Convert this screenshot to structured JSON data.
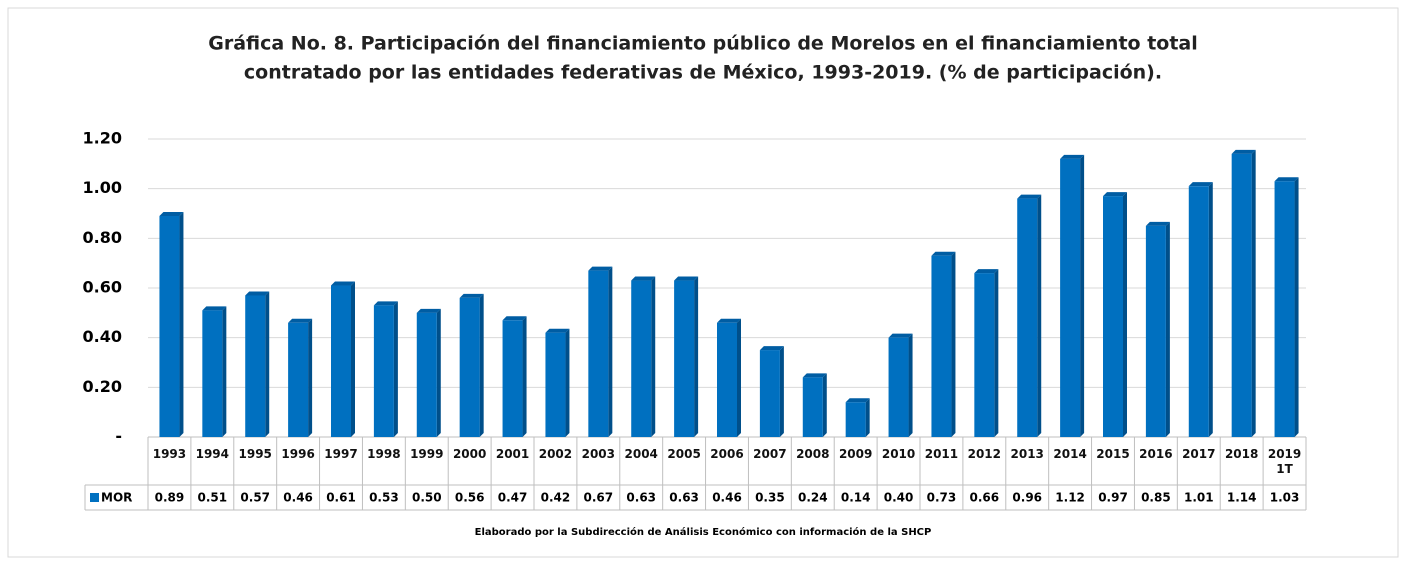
{
  "chart_data": {
    "type": "bar",
    "title": [
      "Gráfica No. 8. Participación del financiamiento público de Morelos en el financiamiento total",
      "contratado por las entidades federativas de México, 1993-2019. (% de participación)."
    ],
    "note": "Elaborado por la Subdirección de Análisis Económico con información de la SHCP",
    "categories": [
      "1993",
      "1994",
      "1995",
      "1996",
      "1997",
      "1998",
      "1999",
      "2000",
      "2001",
      "2002",
      "2003",
      "2004",
      "2005",
      "2006",
      "2007",
      "2008",
      "2009",
      "2010",
      "2011",
      "2012",
      "2013",
      "2014",
      "2015",
      "2016",
      "2017",
      "2018",
      "2019\n1T"
    ],
    "series": [
      {
        "name": "MOR",
        "color": "#0070C0",
        "values": [
          0.89,
          0.51,
          0.57,
          0.46,
          0.61,
          0.53,
          0.5,
          0.56,
          0.47,
          0.42,
          0.67,
          0.63,
          0.63,
          0.46,
          0.35,
          0.24,
          0.14,
          0.4,
          0.73,
          0.66,
          0.96,
          1.12,
          0.97,
          0.85,
          1.01,
          1.14,
          1.03
        ],
        "value_labels": [
          "0.89",
          "0.51",
          "0.57",
          "0.46",
          "0.61",
          "0.53",
          "0.50",
          "0.56",
          "0.47",
          "0.42",
          "0.67",
          "0.63",
          "0.63",
          "0.46",
          "0.35",
          "0.24",
          "0.14",
          "0.40",
          "0.73",
          "0.66",
          "0.96",
          "1.12",
          "0.97",
          "0.85",
          "1.01",
          "1.14",
          "1.03"
        ]
      }
    ],
    "ylim": [
      0,
      1.2
    ],
    "yticks": [
      {
        "value": 0,
        "label": "-"
      },
      {
        "value": 0.2,
        "label": "0.20"
      },
      {
        "value": 0.4,
        "label": "0.40"
      },
      {
        "value": 0.6,
        "label": "0.60"
      },
      {
        "value": 0.8,
        "label": "0.80"
      },
      {
        "value": 1.0,
        "label": "1.00"
      },
      {
        "value": 1.2,
        "label": "1.20"
      }
    ],
    "grid": true
  }
}
